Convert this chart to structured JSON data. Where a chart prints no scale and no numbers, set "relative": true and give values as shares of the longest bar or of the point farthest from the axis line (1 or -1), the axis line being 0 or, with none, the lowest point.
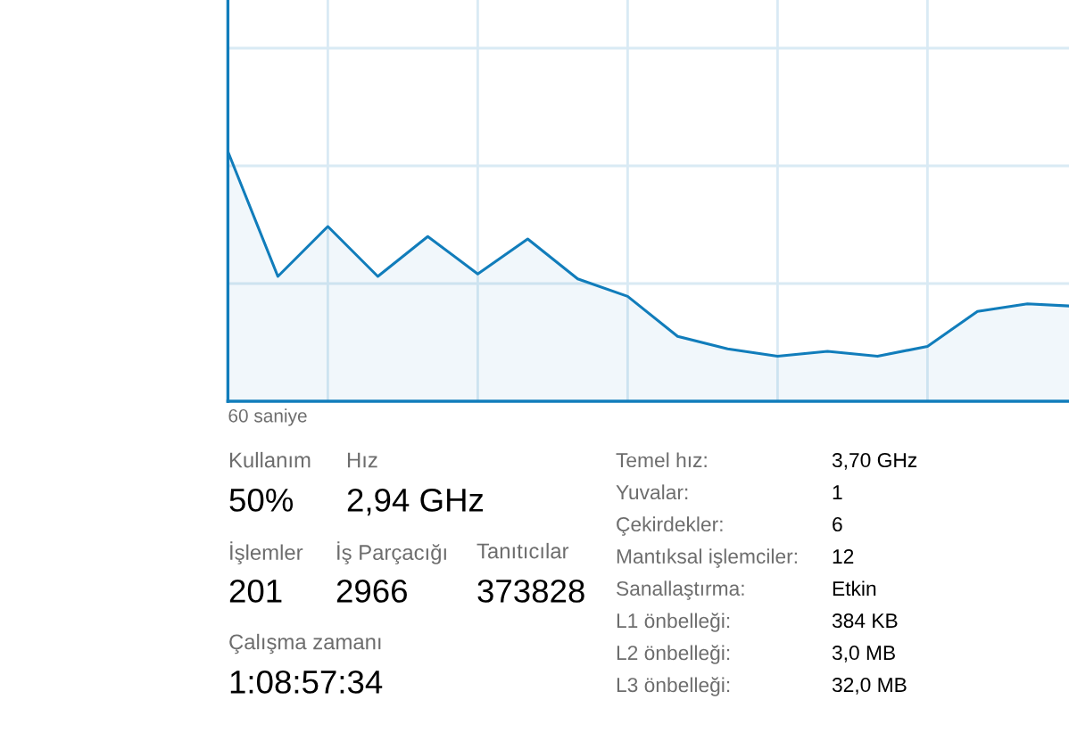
{
  "chart_data": [
    {
      "type": "area",
      "xlabel": "60 saniye",
      "categories": [
        null,
        null,
        null,
        null,
        null,
        null,
        null,
        null,
        null,
        null,
        null,
        null,
        null,
        null,
        null,
        null,
        null,
        null
      ],
      "series": [
        {
          "color": "#117dbb",
          "values": [
            1,
            0.5,
            0.7,
            0.5,
            0.66,
            0.51,
            0.65,
            0.49,
            0.42,
            0.26,
            0.21,
            0.18,
            0.2,
            0.18,
            0.22,
            0.36,
            0.39,
            0.38
          ]
        }
      ],
      "relative": true,
      "grid": true,
      "tick_labels": false
    },
    {
      "type": "other",
      "annotations": [
        "Kullanım",
        "50%",
        "Hız",
        "2,94 GHz",
        "İşlemler",
        "201",
        "İş Parçacığı",
        "2966",
        "Tanıtıcılar",
        "373828",
        "Çalışma zamanı",
        "1:08:57:34",
        "Temel hız:",
        "3,70 GHz",
        "Yuvalar:",
        "1",
        "Çekirdekler:",
        "6",
        "Mantıksal işlemciler:",
        "12",
        "Sanallaştırma:",
        "Etkin",
        "L1 önbelleği:",
        "384 KB",
        "L2 önbelleği:",
        "3,0 MB",
        "L3 önbelleği:",
        "32,0 MB"
      ]
    }
  ]
}
